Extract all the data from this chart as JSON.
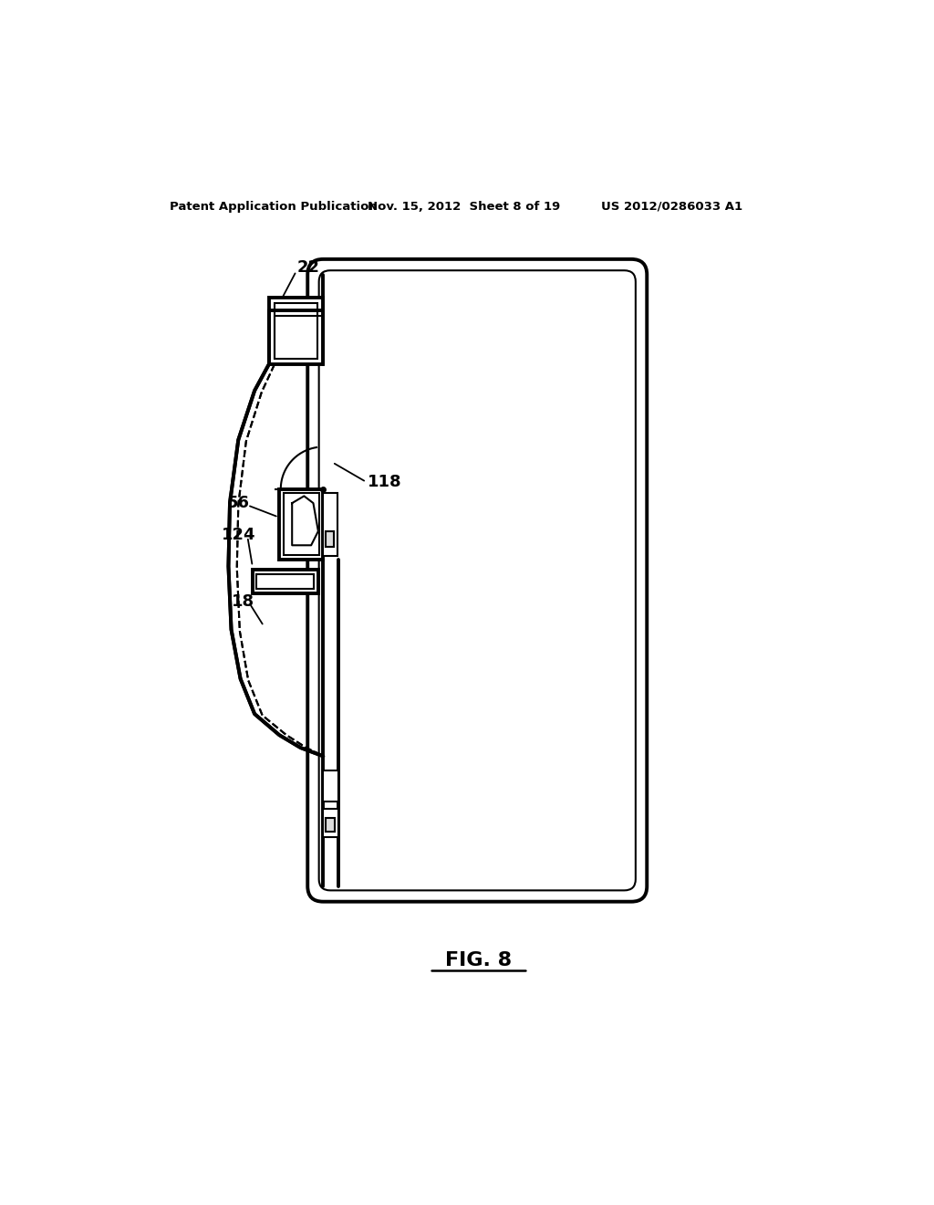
{
  "bg_color": "#ffffff",
  "header_left": "Patent Application Publication",
  "header_mid": "Nov. 15, 2012  Sheet 8 of 19",
  "header_right": "US 2012/0286033 A1",
  "fig_label": "FIG. 8",
  "line_color": "#000000"
}
